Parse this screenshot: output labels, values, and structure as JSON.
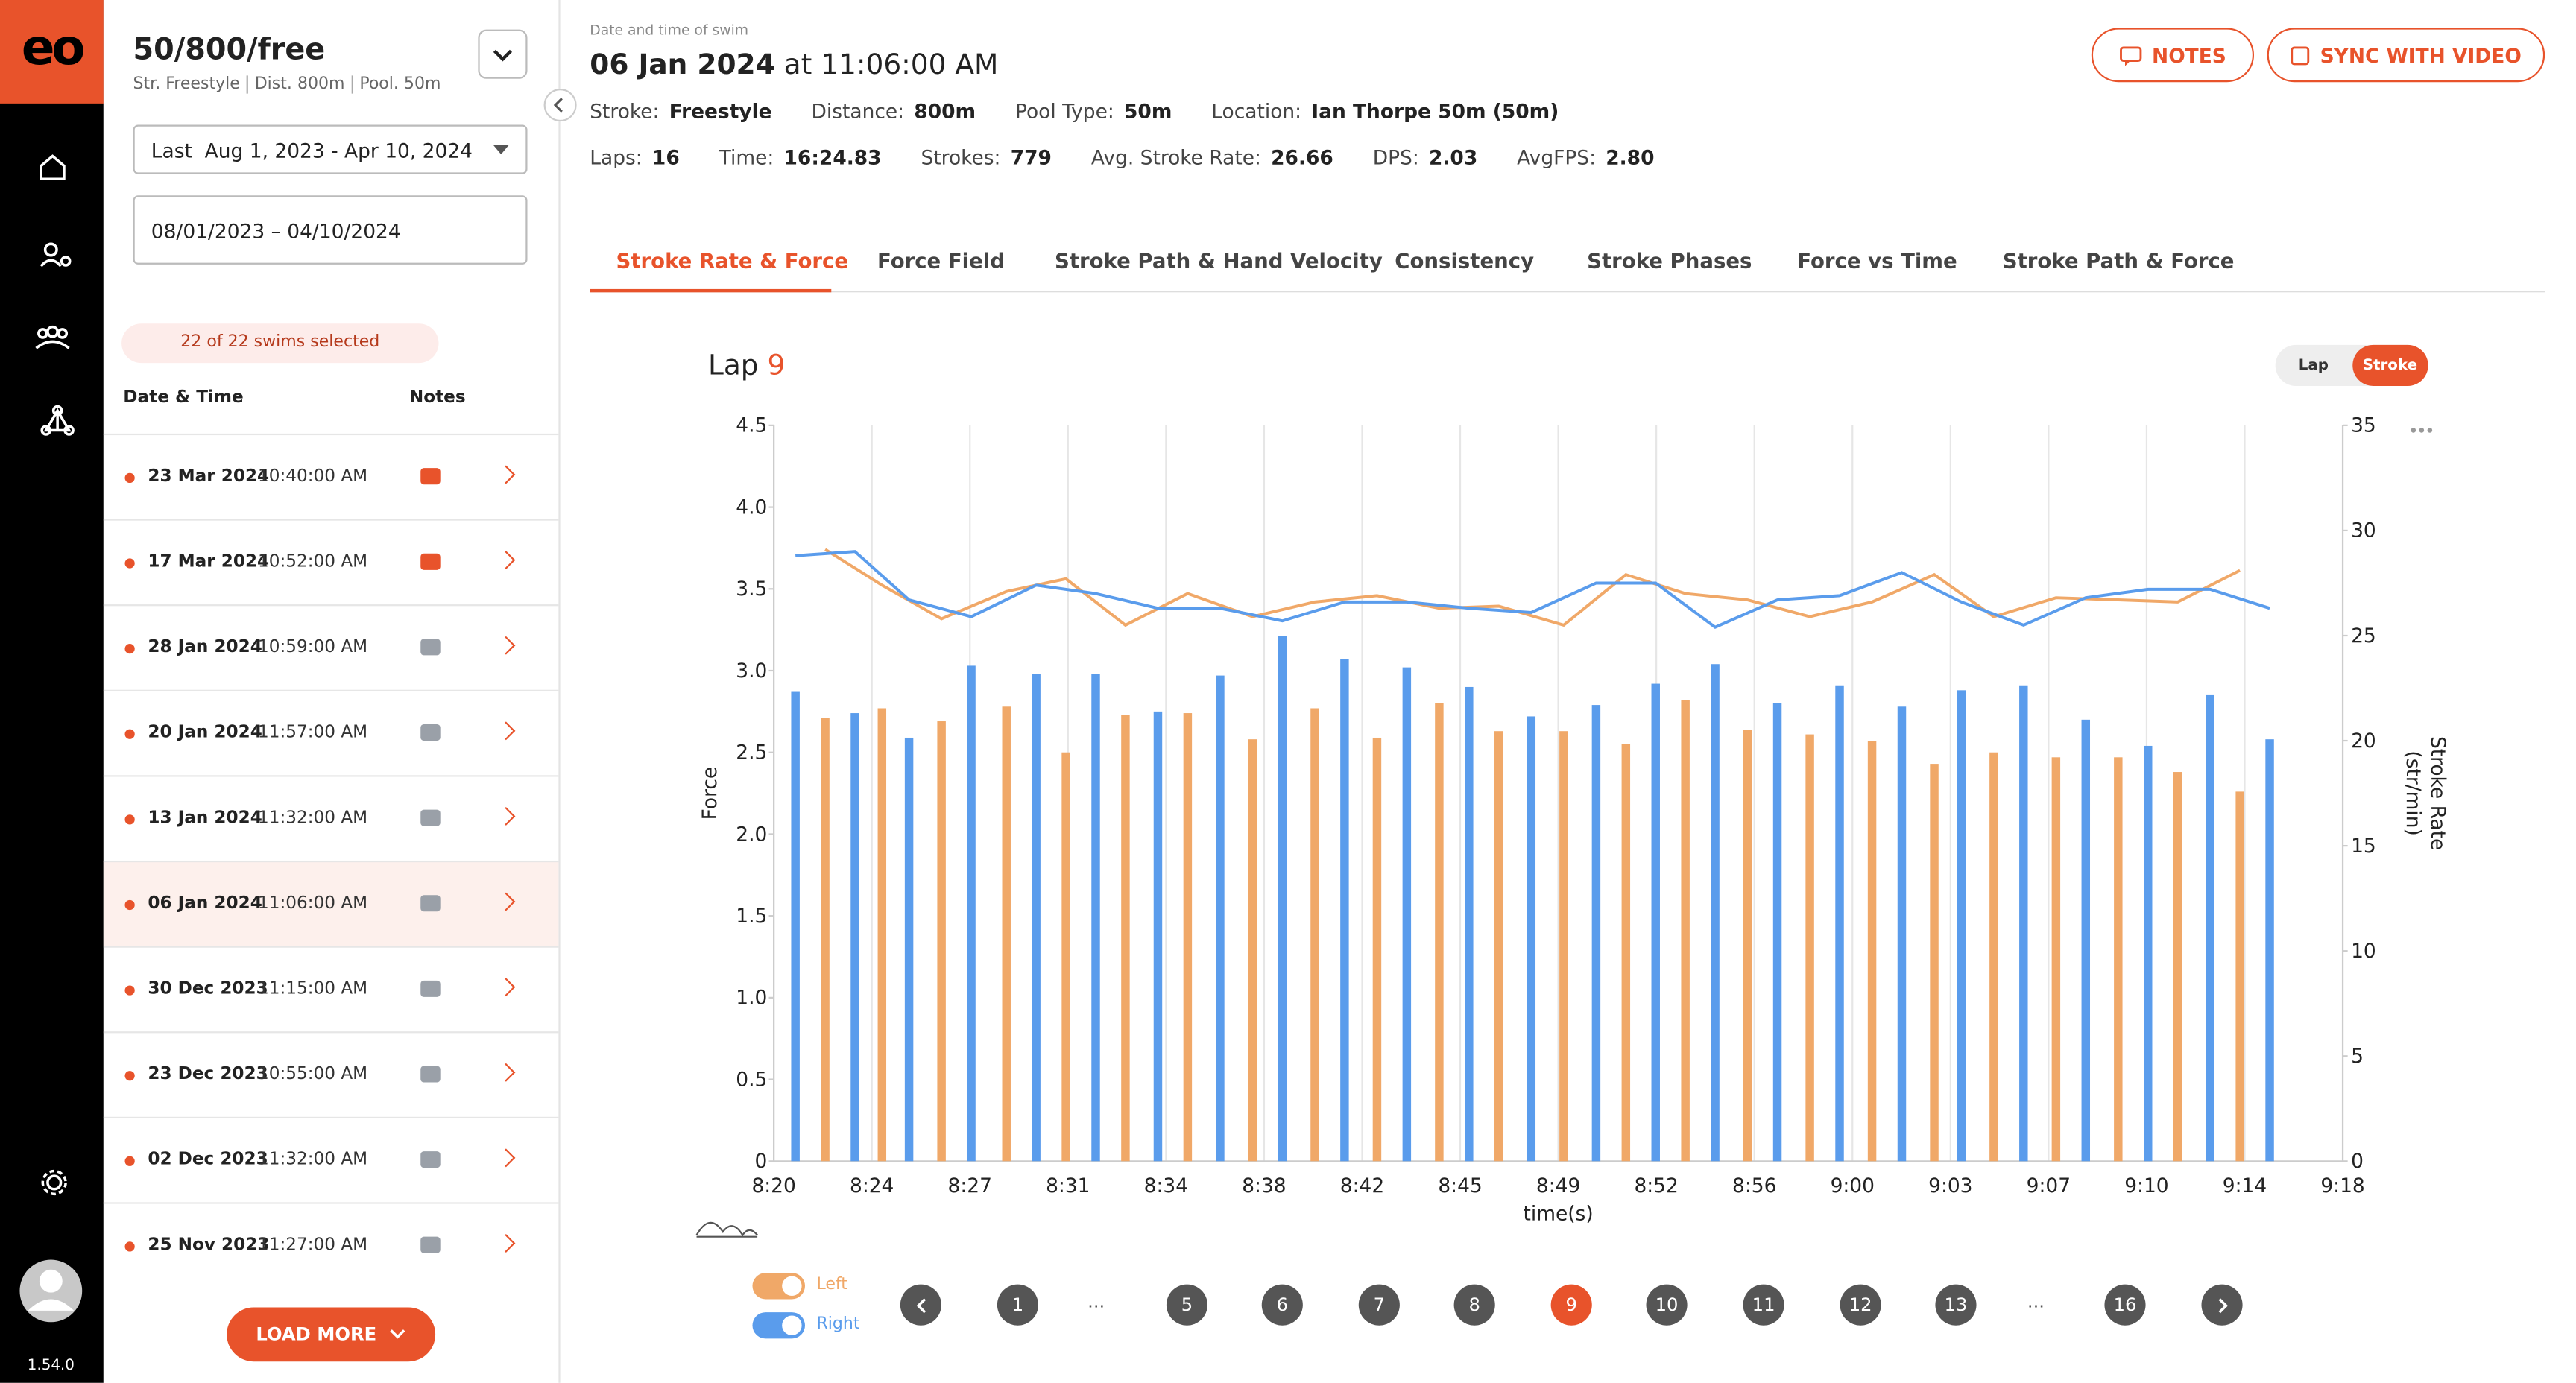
{
  "sidebar": {
    "logo": "eo",
    "version": "1.54.0"
  },
  "panel": {
    "title": "50/800/free",
    "meta": [
      "Str. Freestyle",
      "Dist. 800m",
      "Pool. 50m"
    ],
    "range_select": "Last  Aug 1, 2023 - Apr 10, 2024",
    "date_range": "08/01/2023 – 04/10/2024",
    "selected_badge": "22 of 22 swims selected",
    "columns": [
      "Date & Time",
      "Notes"
    ],
    "selected": 5,
    "swims": [
      {
        "date": "23 Mar 2024",
        "time": "10:40:00 AM",
        "has_note": true
      },
      {
        "date": "17 Mar 2024",
        "time": "10:52:00 AM",
        "has_note": true
      },
      {
        "date": "28 Jan 2024",
        "time": "10:59:00 AM",
        "has_note": false
      },
      {
        "date": "20 Jan 2024",
        "time": "11:57:00 AM",
        "has_note": false
      },
      {
        "date": "13 Jan 2024",
        "time": "11:32:00 AM",
        "has_note": false
      },
      {
        "date": "06 Jan 2024",
        "time": "11:06:00 AM",
        "has_note": false
      },
      {
        "date": "30 Dec 2023",
        "time": "11:15:00 AM",
        "has_note": false
      },
      {
        "date": "23 Dec 2023",
        "time": "10:55:00 AM",
        "has_note": false
      },
      {
        "date": "02 Dec 2023",
        "time": "11:32:00 AM",
        "has_note": false
      },
      {
        "date": "25 Nov 2023",
        "time": "11:27:00 AM",
        "has_note": false
      }
    ],
    "load_more": "LOAD MORE"
  },
  "header": {
    "caption": "Date and time of swim",
    "date": "06 Jan 2024",
    "time": "at 11:06:00 AM",
    "stats": [
      [
        {
          "label": "Stroke:",
          "value": "Freestyle"
        },
        {
          "label": "Distance:",
          "value": "800m"
        },
        {
          "label": "Pool Type:",
          "value": "50m"
        },
        {
          "label": "Location:",
          "value": "Ian Thorpe 50m (50m)"
        }
      ],
      [
        {
          "label": "Laps:",
          "value": "16"
        },
        {
          "label": "Time:",
          "value": "16:24.83"
        },
        {
          "label": "Strokes:",
          "value": "779"
        },
        {
          "label": "Avg. Stroke Rate:",
          "value": "26.66"
        },
        {
          "label": "DPS:",
          "value": "2.03"
        },
        {
          "label": "AvgFPS:",
          "value": "2.80"
        }
      ]
    ],
    "buttons": [
      "NOTES",
      "SYNC WITH VIDEO"
    ]
  },
  "tabs": [
    "Stroke Rate & Force",
    "Force Field",
    "Stroke Path & Hand Velocity",
    "Consistency",
    "Stroke Phases",
    "Force vs Time",
    "Stroke Path & Force"
  ],
  "active_tab": 0,
  "lap_label": "Lap",
  "lap_number": "9",
  "view_toggle": [
    "Lap",
    "Stroke"
  ],
  "active_view": 1,
  "pages": [
    "1",
    "...",
    "5",
    "6",
    "7",
    "8",
    "9",
    "10",
    "11",
    "12",
    "13",
    "...",
    "16"
  ],
  "active_page": 6,
  "chart_data": {
    "type": "bar",
    "y_label": "Force",
    "y2_label": [
      "Stroke Rate",
      "(str/min)"
    ],
    "x_label": "time(s)",
    "xlim": [
      500,
      558
    ],
    "xticks": [
      {
        "value": 500,
        "label": "8:20"
      },
      {
        "value": 503.625,
        "label": "8:24"
      },
      {
        "value": 507.25,
        "label": "8:27"
      },
      {
        "value": 510.875,
        "label": "8:31"
      },
      {
        "value": 514.5,
        "label": "8:34"
      },
      {
        "value": 518.125,
        "label": "8:38"
      },
      {
        "value": 521.75,
        "label": "8:42"
      },
      {
        "value": 525.375,
        "label": "8:45"
      },
      {
        "value": 529,
        "label": "8:49"
      },
      {
        "value": 532.625,
        "label": "8:52"
      },
      {
        "value": 536.25,
        "label": "8:56"
      },
      {
        "value": 539.875,
        "label": "9:00"
      },
      {
        "value": 543.5,
        "label": "9:03"
      },
      {
        "value": 547.125,
        "label": "9:07"
      },
      {
        "value": 550.75,
        "label": "9:10"
      },
      {
        "value": 554.375,
        "label": "9:14"
      },
      {
        "value": 558,
        "label": "9:18"
      }
    ],
    "ylim": [
      0,
      4.5
    ],
    "yticks": [
      0,
      0.5,
      {
        "value": 1,
        "label": "1.0"
      },
      1.5,
      {
        "value": 2,
        "label": "2.0"
      },
      2.5,
      {
        "value": 3,
        "label": "3.0"
      },
      3.5,
      {
        "value": 4,
        "label": "4.0"
      },
      4.5
    ],
    "y2lim": [
      0,
      35
    ],
    "y2ticks": [
      0,
      5,
      10,
      15,
      20,
      25,
      30,
      35
    ],
    "grid": "x",
    "series": [
      {
        "name": "Left",
        "color": "#f0a868",
        "x": [
          501.9,
          504.0,
          506.2,
          508.6,
          510.8,
          513.0,
          515.3,
          517.7,
          520.0,
          522.3,
          524.6,
          526.8,
          529.2,
          531.5,
          533.7,
          536.0,
          538.3,
          540.6,
          542.9,
          545.1,
          547.4,
          549.7,
          551.9,
          554.2
        ],
        "values": [
          2.71,
          2.77,
          2.69,
          2.78,
          2.5,
          2.73,
          2.74,
          2.58,
          2.77,
          2.59,
          2.8,
          2.63,
          2.63,
          2.55,
          2.82,
          2.64,
          2.61,
          2.57,
          2.43,
          2.5,
          2.47,
          2.47,
          2.38,
          2.26
        ],
        "stroke_rate": [
          29.1,
          27.4,
          25.8,
          27.1,
          27.7,
          25.5,
          27.0,
          25.9,
          26.6,
          26.9,
          26.3,
          26.4,
          25.5,
          27.9,
          27.0,
          26.7,
          25.9,
          26.6,
          27.9,
          25.9,
          26.8,
          26.7,
          26.6,
          28.1
        ]
      },
      {
        "name": "Right",
        "color": "#5a9cec",
        "x": [
          500.8,
          503.0,
          505.0,
          507.3,
          509.7,
          511.9,
          514.2,
          516.5,
          518.8,
          521.1,
          523.4,
          525.7,
          528.0,
          530.4,
          532.6,
          534.8,
          537.1,
          539.4,
          541.7,
          543.9,
          546.2,
          548.5,
          550.8,
          553.1,
          555.3
        ],
        "values": [
          2.87,
          2.74,
          2.59,
          3.03,
          2.98,
          2.98,
          2.75,
          2.97,
          3.21,
          3.07,
          3.02,
          2.9,
          2.72,
          2.79,
          2.92,
          3.04,
          2.8,
          2.91,
          2.78,
          2.88,
          2.91,
          2.7,
          2.54,
          2.85,
          2.58
        ],
        "stroke_rate": [
          28.8,
          29.0,
          26.7,
          25.9,
          27.4,
          27.0,
          26.3,
          26.3,
          25.7,
          26.6,
          26.6,
          26.3,
          26.1,
          27.5,
          27.5,
          25.4,
          26.7,
          26.9,
          28.0,
          26.6,
          25.5,
          26.8,
          27.2,
          27.2,
          26.3
        ]
      }
    ]
  }
}
